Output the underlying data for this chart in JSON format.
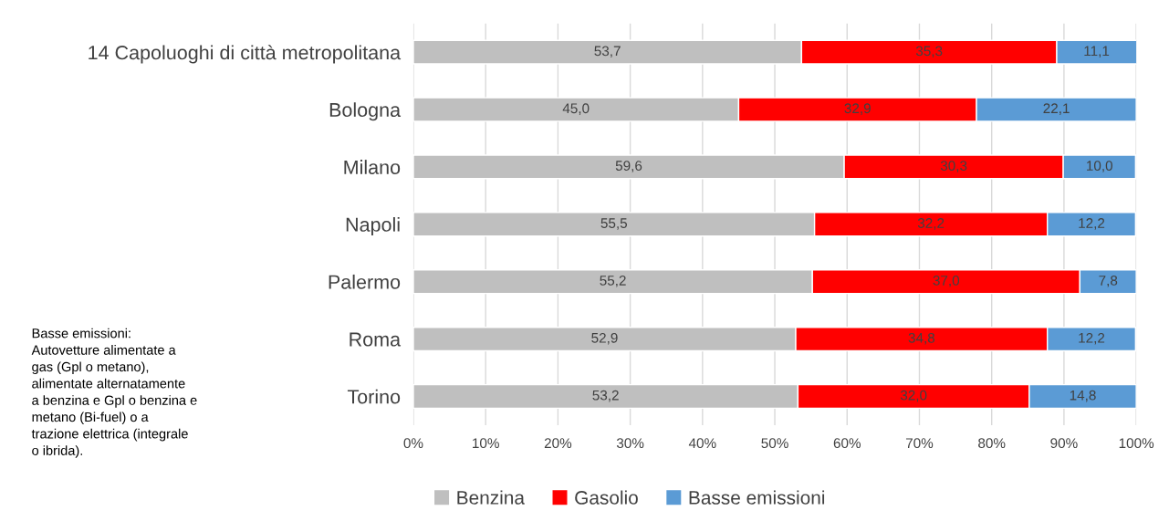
{
  "chart_data": {
    "type": "bar",
    "orientation": "horizontal",
    "stacked": true,
    "categories": [
      "14 Capoluoghi di città metropolitana",
      "Bologna",
      "Milano",
      "Napoli",
      "Palermo",
      "Roma",
      "Torino"
    ],
    "series": [
      {
        "name": "Benzina",
        "color": "#bfbfbf",
        "values": [
          53.7,
          45.0,
          59.6,
          55.5,
          55.2,
          52.9,
          53.2
        ],
        "value_labels": [
          "53,7",
          "45,0",
          "59,6",
          "55,5",
          "55,2",
          "52,9",
          "53,2"
        ]
      },
      {
        "name": "Gasolio",
        "color": "#ff0000",
        "values": [
          35.3,
          32.9,
          30.3,
          32.2,
          37.0,
          34.8,
          32.0
        ],
        "value_labels": [
          "35,3",
          "32,9",
          "30,3",
          "32,2",
          "37,0",
          "34,8",
          "32,0"
        ]
      },
      {
        "name": "Basse emissioni",
        "color": "#5b9bd5",
        "values": [
          11.1,
          22.1,
          10.0,
          12.2,
          7.8,
          12.2,
          14.8
        ],
        "value_labels": [
          "11,1",
          "22,1",
          "10,0",
          "12,2",
          "7,8",
          "12,2",
          "14,8"
        ]
      }
    ],
    "xlim": [
      0,
      100
    ],
    "xticks": [
      {
        "value": 0,
        "label": "0%"
      },
      {
        "value": 10,
        "label": "10%"
      },
      {
        "value": 20,
        "label": "20%"
      },
      {
        "value": 30,
        "label": "30%"
      },
      {
        "value": 40,
        "label": "40%"
      },
      {
        "value": 50,
        "label": "50%"
      },
      {
        "value": 60,
        "label": "60%"
      },
      {
        "value": 70,
        "label": "70%"
      },
      {
        "value": 80,
        "label": "80%"
      },
      {
        "value": 90,
        "label": "90%"
      },
      {
        "value": 100,
        "label": "100%"
      }
    ],
    "grid": "x",
    "legend": "bottom",
    "annotations": [
      "Basse emissioni:\nAutovetture alimentate a\ngas (Gpl o metano),\nalimentate alternatamente\na benzina e Gpl o benzina e\nmetano (Bi-fuel) o a\ntrazione elettrica (integrale\no ibrida)."
    ]
  }
}
